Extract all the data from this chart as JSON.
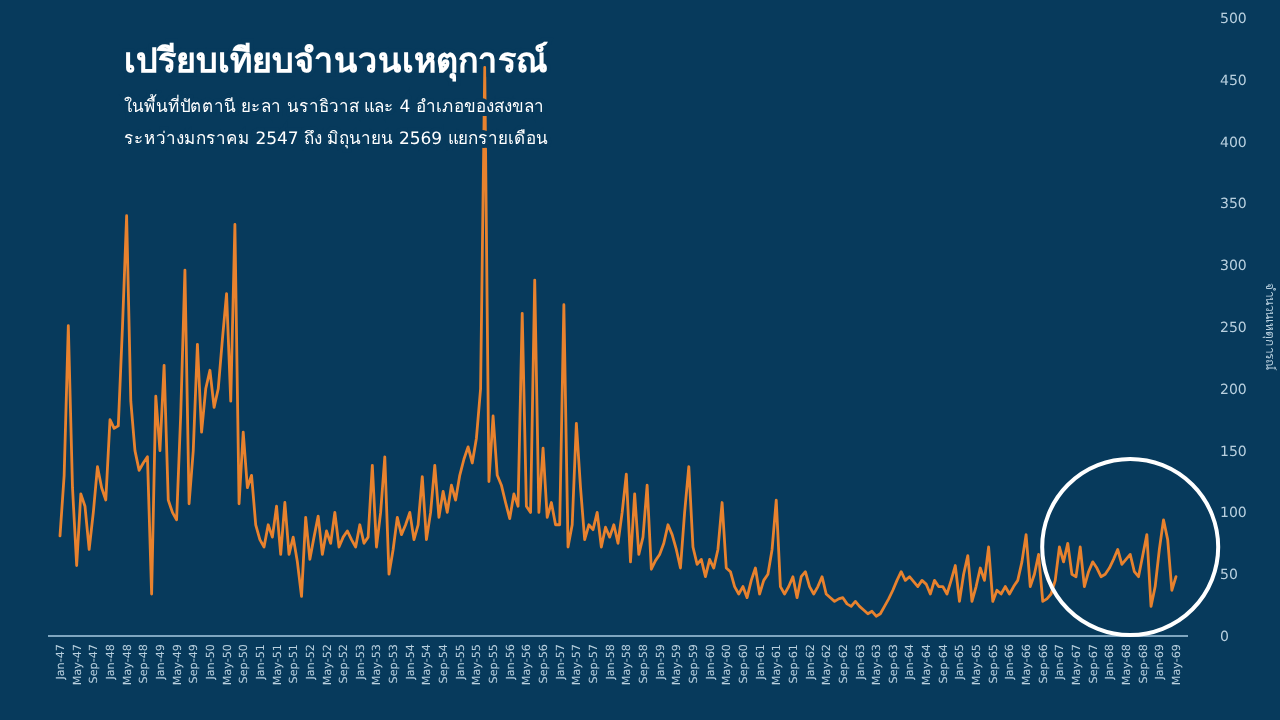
{
  "chart_data": {
    "type": "line",
    "title": "เปรียบเทียบจำนวนเหตุการณ์",
    "subtitle": "ในพื้นที่ปัตตานี ยะลา นราธิวาส และ 4 อำเภอของสงขลา\nระหว่างมกราคม 2547 ถึง มิถุนายน 2569 แยกรายเดือน",
    "ylabel": "จำนวนเหตุการณ์",
    "categories": [
      "Jan-47",
      null,
      null,
      null,
      "May-47",
      null,
      null,
      null,
      "Sep-47",
      null,
      null,
      null,
      "Jan-48",
      null,
      null,
      null,
      "May-48",
      null,
      null,
      null,
      "Sep-48",
      null,
      null,
      null,
      "Jan-49",
      null,
      null,
      null,
      "May-49",
      null,
      null,
      null,
      "Sep-49",
      null,
      null,
      null,
      "Jan-50",
      null,
      null,
      null,
      "May-50",
      null,
      null,
      null,
      "Sep-50",
      null,
      null,
      null,
      "Jan-51",
      null,
      null,
      null,
      "May-51",
      null,
      null,
      null,
      "Sep-51",
      null,
      null,
      null,
      "Jan-52",
      null,
      null,
      null,
      "May-52",
      null,
      null,
      null,
      "Sep-52",
      null,
      null,
      null,
      "Jan-53",
      null,
      null,
      null,
      "May-53",
      null,
      null,
      null,
      "Sep-53",
      null,
      null,
      null,
      "Jan-54",
      null,
      null,
      null,
      "May-54",
      null,
      null,
      null,
      "Sep-54",
      null,
      null,
      null,
      "Jan-55",
      null,
      null,
      null,
      "May-55",
      null,
      null,
      null,
      "Sep-55",
      null,
      null,
      null,
      "Jan-56",
      null,
      null,
      null,
      "May-56",
      null,
      null,
      null,
      "Sep-56",
      null,
      null,
      null,
      "Jan-57",
      null,
      null,
      null,
      "May-57",
      null,
      null,
      null,
      "Sep-57",
      null,
      null,
      null,
      "Jan-58",
      null,
      null,
      null,
      "May-58",
      null,
      null,
      null,
      "Sep-58",
      null,
      null,
      null,
      "Jan-59",
      null,
      null,
      null,
      "May-59",
      null,
      null,
      null,
      "Sep-59",
      null,
      null,
      null,
      "Jan-60",
      null,
      null,
      null,
      "May-60",
      null,
      null,
      null,
      "Sep-60",
      null,
      null,
      null,
      "Jan-61",
      null,
      null,
      null,
      "May-61",
      null,
      null,
      null,
      "Sep-61",
      null,
      null,
      null,
      "Jan-62",
      null,
      null,
      null,
      "May-62",
      null,
      null,
      null,
      "Sep-62",
      null,
      null,
      null,
      "Jan-63",
      null,
      null,
      null,
      "May-63",
      null,
      null,
      null,
      "Sep-63",
      null,
      null,
      null,
      "Jan-64",
      null,
      null,
      null,
      "May-64",
      null,
      null,
      null,
      "Sep-64",
      null,
      null,
      null,
      "Jan-65",
      null,
      null,
      null,
      "May-65",
      null,
      null,
      null,
      "Sep-65",
      null,
      null,
      null,
      "Jan-66",
      null,
      null,
      null,
      "May-66",
      null,
      null,
      null,
      "Sep-66",
      null,
      null,
      null,
      "Jan-67",
      null,
      null,
      null,
      "May-67",
      null,
      null,
      null,
      "Sep-67",
      null,
      null,
      null,
      "Jan-68",
      null,
      null,
      null,
      "May-68",
      null,
      null,
      null,
      "Sep-68",
      null,
      null,
      null,
      "Jan-69",
      null,
      null,
      null,
      "May-69"
    ],
    "series": [
      {
        "color": "#e8822e",
        "values": [
          81,
          130,
          251,
          120,
          57,
          115,
          105,
          70,
          100,
          137,
          120,
          110,
          175,
          168,
          170,
          250,
          340,
          190,
          150,
          134,
          140,
          145,
          34,
          194,
          150,
          219,
          110,
          100,
          94,
          180,
          296,
          107,
          150,
          236,
          165,
          200,
          215,
          185,
          200,
          240,
          277,
          190,
          333,
          107,
          165,
          120,
          130,
          90,
          78,
          72,
          90,
          80,
          105,
          66,
          108,
          66,
          80,
          60,
          32,
          96,
          62,
          80,
          97,
          66,
          85,
          75,
          100,
          72,
          80,
          85,
          78,
          72,
          90,
          75,
          80,
          138,
          72,
          100,
          145,
          50,
          70,
          96,
          82,
          90,
          100,
          78,
          90,
          129,
          78,
          100,
          138,
          96,
          117,
          100,
          122,
          110,
          130,
          143,
          153,
          140,
          160,
          200,
          460,
          125,
          178,
          130,
          122,
          108,
          95,
          115,
          105,
          261,
          105,
          100,
          288,
          100,
          152,
          96,
          108,
          90,
          90,
          268,
          72,
          90,
          172,
          120,
          78,
          90,
          86,
          100,
          72,
          88,
          80,
          90,
          75,
          100,
          131,
          60,
          115,
          66,
          80,
          122,
          54,
          61,
          66,
          75,
          90,
          82,
          70,
          55,
          100,
          137,
          72,
          58,
          62,
          48,
          62,
          55,
          70,
          108,
          55,
          52,
          40,
          34,
          40,
          31,
          45,
          55,
          34,
          45,
          50,
          70,
          110,
          40,
          34,
          40,
          48,
          31,
          48,
          52,
          40,
          34,
          40,
          48,
          34,
          31,
          28,
          30,
          31,
          26,
          24,
          28,
          24,
          21,
          18,
          20,
          16,
          18,
          24,
          30,
          37,
          45,
          52,
          45,
          48,
          44,
          40,
          45,
          42,
          34,
          45,
          40,
          40,
          34,
          45,
          57,
          28,
          50,
          65,
          28,
          40,
          55,
          45,
          72,
          28,
          37,
          34,
          40,
          34,
          40,
          45,
          60,
          82,
          40,
          50,
          66,
          28,
          30,
          34,
          45,
          72,
          60,
          75,
          50,
          48,
          72,
          40,
          52,
          60,
          55,
          48,
          50,
          55,
          62,
          70,
          58,
          62,
          66,
          52,
          48,
          65,
          82,
          24,
          40,
          70,
          94,
          78,
          37,
          48
        ]
      }
    ],
    "ylim": [
      0,
      500
    ],
    "yticks": [
      0,
      50,
      100,
      150,
      200,
      250,
      300,
      350,
      400,
      450,
      500
    ]
  }
}
